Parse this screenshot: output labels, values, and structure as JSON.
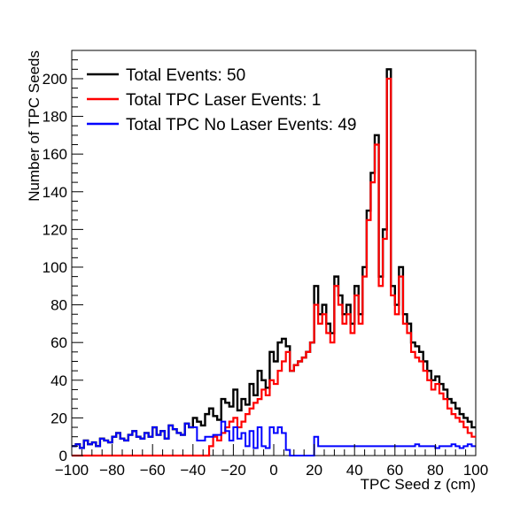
{
  "chart_data": {
    "type": "line",
    "title": "",
    "xlabel": "TPC Seed z (cm)",
    "ylabel": "Number of TPC Seeds",
    "xlim": [
      -100,
      100
    ],
    "ylim": [
      0,
      215
    ],
    "grid": false,
    "legend_position": "top-left",
    "x_ticks": [
      -100,
      -80,
      -60,
      -40,
      -20,
      0,
      20,
      40,
      60,
      80,
      100
    ],
    "y_ticks": [
      0,
      20,
      40,
      60,
      80,
      100,
      120,
      140,
      160,
      180,
      200
    ],
    "x": [
      -99,
      -97,
      -95,
      -93,
      -91,
      -89,
      -87,
      -85,
      -83,
      -81,
      -79,
      -77,
      -75,
      -73,
      -71,
      -69,
      -67,
      -65,
      -63,
      -61,
      -59,
      -57,
      -55,
      -53,
      -51,
      -49,
      -47,
      -45,
      -43,
      -41,
      -39,
      -37,
      -35,
      -33,
      -31,
      -29,
      -27,
      -25,
      -23,
      -21,
      -19,
      -17,
      -15,
      -13,
      -11,
      -9,
      -7,
      -5,
      -3,
      -1,
      1,
      3,
      5,
      7,
      9,
      11,
      13,
      15,
      17,
      19,
      21,
      23,
      25,
      27,
      29,
      31,
      33,
      35,
      37,
      39,
      41,
      43,
      45,
      47,
      49,
      51,
      53,
      55,
      57,
      59,
      61,
      63,
      65,
      67,
      69,
      71,
      73,
      75,
      77,
      79,
      81,
      83,
      85,
      87,
      89,
      91,
      93,
      95,
      97,
      99
    ],
    "series": [
      {
        "name": "Total Events: 50",
        "color": "#000000",
        "values": [
          5,
          6,
          4,
          8,
          6,
          7,
          5,
          9,
          8,
          7,
          10,
          12,
          9,
          8,
          11,
          13,
          10,
          9,
          12,
          10,
          15,
          11,
          13,
          9,
          16,
          14,
          12,
          11,
          17,
          15,
          20,
          18,
          16,
          22,
          25,
          21,
          19,
          30,
          28,
          26,
          35,
          24,
          30,
          27,
          38,
          32,
          45,
          40,
          36,
          55,
          50,
          60,
          62,
          58,
          45,
          48,
          50,
          52,
          55,
          60,
          90,
          75,
          80,
          70,
          65,
          95,
          85,
          75,
          80,
          70,
          90,
          75,
          100,
          130,
          150,
          170,
          95,
          120,
          205,
          90,
          80,
          100,
          75,
          70,
          60,
          58,
          55,
          50,
          45,
          40,
          42,
          38,
          35,
          30,
          28,
          25,
          22,
          20,
          18,
          15
        ]
      },
      {
        "name": "Total TPC Laser Events: 1",
        "color": "#ff0000",
        "values": [
          0,
          0,
          0,
          0,
          0,
          0,
          0,
          0,
          0,
          0,
          0,
          0,
          0,
          0,
          0,
          0,
          0,
          0,
          0,
          0,
          0,
          0,
          0,
          0,
          0,
          0,
          0,
          0,
          0,
          0,
          0,
          0,
          0,
          0,
          5,
          10,
          8,
          12,
          15,
          18,
          20,
          15,
          18,
          22,
          25,
          28,
          30,
          35,
          32,
          40,
          38,
          45,
          50,
          55,
          45,
          48,
          50,
          52,
          55,
          60,
          80,
          70,
          75,
          65,
          60,
          90,
          80,
          70,
          75,
          65,
          85,
          70,
          95,
          125,
          145,
          165,
          90,
          115,
          200,
          85,
          75,
          95,
          70,
          65,
          55,
          52,
          50,
          45,
          40,
          35,
          38,
          33,
          30,
          25,
          22,
          20,
          18,
          15,
          12,
          10
        ]
      },
      {
        "name": "Total TPC No Laser Events: 49",
        "color": "#0000ff",
        "values": [
          5,
          6,
          4,
          8,
          6,
          7,
          5,
          9,
          8,
          7,
          10,
          12,
          9,
          8,
          11,
          13,
          10,
          9,
          12,
          10,
          15,
          11,
          13,
          9,
          16,
          14,
          12,
          11,
          17,
          15,
          15,
          8,
          8,
          10,
          10,
          11,
          11,
          18,
          13,
          8,
          15,
          9,
          12,
          5,
          13,
          4,
          15,
          5,
          4,
          15,
          12,
          15,
          12,
          3,
          0,
          0,
          0,
          0,
          0,
          0,
          10,
          5,
          5,
          5,
          5,
          5,
          5,
          5,
          5,
          5,
          5,
          5,
          5,
          5,
          5,
          5,
          5,
          5,
          5,
          5,
          5,
          5,
          5,
          5,
          5,
          6,
          5,
          5,
          5,
          5,
          4,
          5,
          5,
          5,
          6,
          5,
          4,
          5,
          6,
          5
        ]
      }
    ]
  }
}
